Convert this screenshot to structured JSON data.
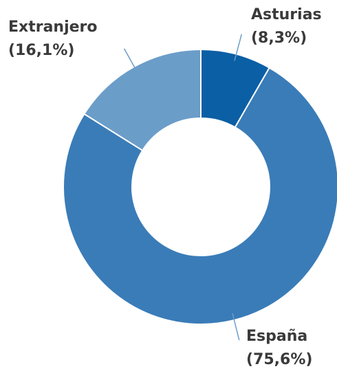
{
  "chart_data": {
    "type": "donut",
    "categories": [
      "Asturias",
      "España",
      "Extranjero"
    ],
    "values": [
      8.3,
      75.6,
      16.1
    ],
    "value_labels": [
      "(8,3%)",
      "(75,6%)",
      "(16,1%)"
    ],
    "colors": [
      "#0b5fa5",
      "#3a7cb8",
      "#6b9dc9"
    ]
  }
}
